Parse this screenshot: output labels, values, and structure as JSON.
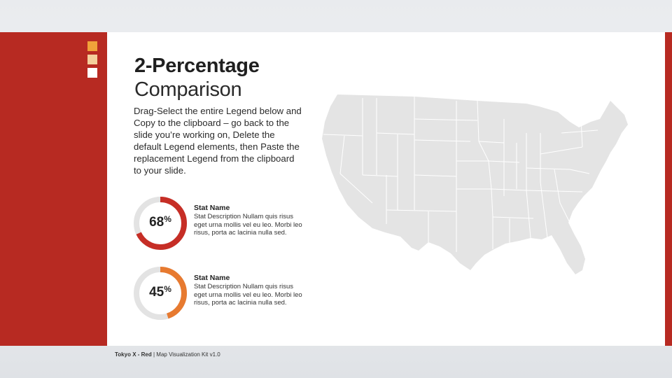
{
  "title": {
    "bold": "2-Percentage",
    "light": "Comparison"
  },
  "body": "Drag-Select the entire Legend below and Copy to the clipboard – go back to the slide you’re working on, Delete the default Legend elements, then Paste the replacement Legend from the clipboard to your slide.",
  "stats": [
    {
      "value": "68",
      "percent_sign": "%",
      "fraction": 0.68,
      "color": "#c62e26",
      "track_color": "#e3e3e3",
      "name": "Stat Name",
      "description": "Stat Description Nullam quis risus eget urna mollis vel eu leo. Morbi leo risus, porta ac lacinia nulla sed."
    },
    {
      "value": "45",
      "percent_sign": "%",
      "fraction": 0.45,
      "color": "#e77a30",
      "track_color": "#e3e3e3",
      "name": "Stat Name",
      "description": "Stat Description Nullam quis risus eget urna mollis vel eu leo. Morbi leo risus, porta ac lacinia nulla sed."
    }
  ],
  "footer": {
    "brand": "Tokyo X - Red",
    "separator": " | ",
    "kit": "Map Visualization Kit v1.0"
  },
  "colors": {
    "accent": "#b72a22",
    "square1": "#f0a23a",
    "square2": "#f4cf9c",
    "square3": "#ffffff",
    "map_fill": "#e4e4e4",
    "map_border": "#ffffff"
  }
}
